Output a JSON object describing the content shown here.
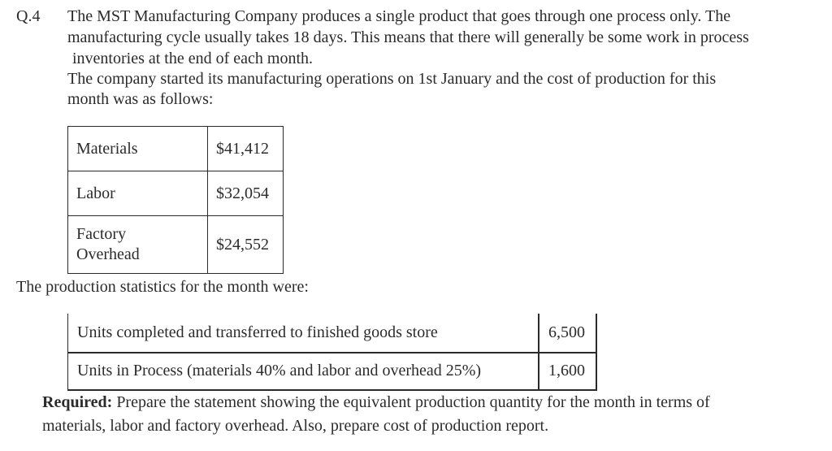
{
  "question": {
    "number": "Q.4",
    "intro_lines": [
      "The MST Manufacturing Company produces a single product that goes through one process only. The",
      "manufacturing cycle usually takes 18 days. This means that there will generally be some work in process",
      "inventories at the end of each month.",
      "The company started its manufacturing operations on 1st January and the cost of production for this",
      "month was as follows:"
    ]
  },
  "cost_table": {
    "rows": [
      {
        "label": "Materials",
        "value": "$41,412"
      },
      {
        "label": "Labor",
        "value": "$32,054"
      },
      {
        "label_line1": "Factory",
        "label_line2": "Overhead",
        "value": "$24,552"
      }
    ]
  },
  "production": {
    "heading": "The production statistics for the month were:",
    "rows": [
      {
        "label": "Units completed and transferred to finished goods store",
        "value": "6,500"
      },
      {
        "label": "Units in Process (materials 40% and labor and overhead 25%)",
        "value": "1,600"
      }
    ]
  },
  "required": {
    "label": "Required:",
    "line1": " Prepare the statement showing the equivalent production quantity for the month in terms of",
    "line2": "materials, labor and factory overhead. Also, prepare cost of production report."
  }
}
